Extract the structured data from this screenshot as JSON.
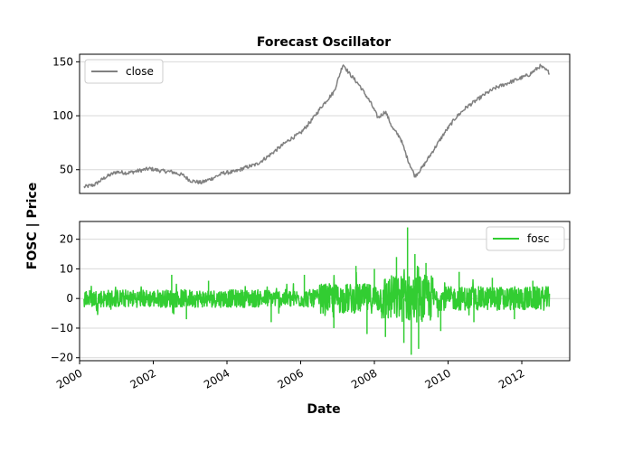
{
  "chart_data": [
    {
      "panel": "top",
      "type": "line",
      "title": "Forecast Oscillator",
      "ylabel_shared": "FOSC | Price",
      "xlim": [
        2000.0,
        2013.3
      ],
      "ylim": [
        28,
        157
      ],
      "yticks": [
        50,
        100,
        150
      ],
      "grid": "horizontal",
      "legend_placement": "top-left",
      "series": [
        {
          "name": "close",
          "color": "#808080",
          "x": [
            2000.12,
            2000.4,
            2000.7,
            2001.0,
            2001.3,
            2001.6,
            2001.9,
            2002.2,
            2002.5,
            2002.8,
            2003.0,
            2003.3,
            2003.6,
            2003.9,
            2004.2,
            2004.5,
            2004.8,
            2005.1,
            2005.4,
            2005.7,
            2006.0,
            2006.3,
            2006.6,
            2006.9,
            2007.0,
            2007.15,
            2007.3,
            2007.6,
            2007.9,
            2008.1,
            2008.3,
            2008.5,
            2008.7,
            2008.9,
            2009.1,
            2009.3,
            2009.6,
            2009.9,
            2010.2,
            2010.5,
            2010.8,
            2011.0,
            2011.3,
            2011.6,
            2011.9,
            2012.2,
            2012.5,
            2012.75
          ],
          "y": [
            34,
            36,
            43,
            48,
            47,
            49,
            51,
            49,
            48,
            45,
            40,
            38,
            42,
            47,
            48,
            52,
            55,
            62,
            70,
            78,
            84,
            96,
            110,
            122,
            132,
            148,
            140,
            128,
            112,
            98,
            104,
            88,
            80,
            60,
            44,
            52,
            68,
            84,
            98,
            108,
            115,
            120,
            126,
            130,
            134,
            138,
            146,
            140
          ]
        }
      ]
    },
    {
      "panel": "bottom",
      "type": "line",
      "xlabel": "Date",
      "xlim": [
        2000.0,
        2013.3
      ],
      "ylim": [
        -21,
        26
      ],
      "xticks": [
        2000,
        2002,
        2004,
        2006,
        2008,
        2010,
        2012
      ],
      "yticks": [
        -20,
        -10,
        0,
        10,
        20
      ],
      "grid": "horizontal",
      "legend_placement": "top-right",
      "series": [
        {
          "name": "fosc",
          "color": "#32cd32",
          "x": [
            2000.12,
            2002.5,
            2002.9,
            2003.5,
            2005.2,
            2006.1,
            2006.9,
            2007.5,
            2007.8,
            2008.0,
            2008.3,
            2008.6,
            2008.8,
            2008.9,
            2009.0,
            2009.1,
            2009.2,
            2009.4,
            2009.8,
            2010.3,
            2010.7,
            2011.2,
            2011.8,
            2012.3,
            2012.75
          ],
          "y": [
            0,
            8,
            -7,
            6,
            -8,
            8,
            -10,
            11,
            -12,
            10,
            -13,
            14,
            -15,
            24,
            -19,
            15,
            -17,
            12,
            -11,
            9,
            -8,
            7,
            -7,
            6,
            0
          ],
          "noise_amplitude_by_period": [
            {
              "from": 2000.1,
              "to": 2006.5,
              "amp": 3
            },
            {
              "from": 2006.5,
              "to": 2008.2,
              "amp": 5
            },
            {
              "from": 2008.2,
              "to": 2009.6,
              "amp": 8
            },
            {
              "from": 2009.6,
              "to": 2012.8,
              "amp": 4
            }
          ]
        }
      ]
    }
  ],
  "layout_text": {
    "title": "Forecast Oscillator",
    "ylabel": "FOSC | Price",
    "xlabel": "Date",
    "legend_top": "close",
    "legend_bottom": "fosc"
  }
}
